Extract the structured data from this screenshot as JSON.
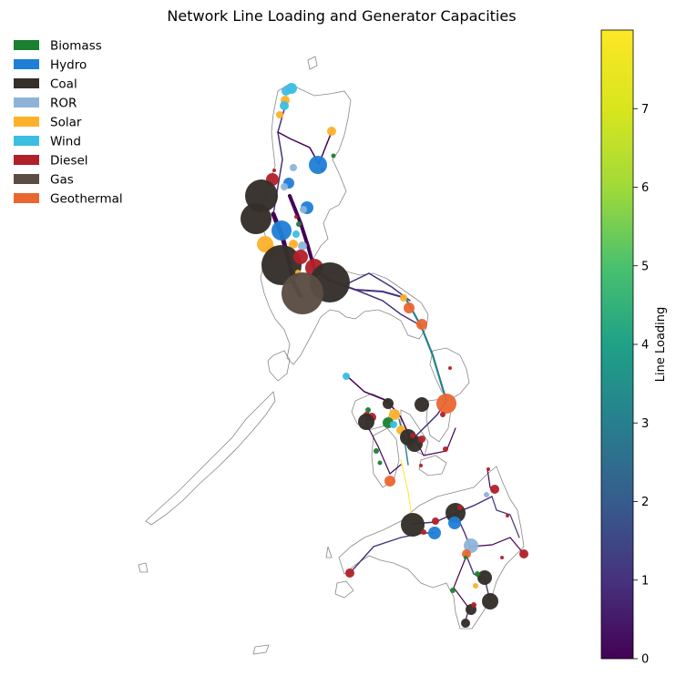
{
  "chart_data": {
    "type": "map",
    "title": "Network Line Loading and Generator Capacities",
    "legend": {
      "placement": "top-left",
      "entries": [
        {
          "name": "Biomass",
          "color": "#1a7f2e"
        },
        {
          "name": "Hydro",
          "color": "#1f7ed6"
        },
        {
          "name": "Coal",
          "color": "#352f2a"
        },
        {
          "name": "ROR",
          "color": "#8db4d8"
        },
        {
          "name": "Solar",
          "color": "#fdb12a"
        },
        {
          "name": "Wind",
          "color": "#3bbde4"
        },
        {
          "name": "Diesel",
          "color": "#b22028"
        },
        {
          "name": "Gas",
          "color": "#5a4d44"
        },
        {
          "name": "Geothermal",
          "color": "#ea6630"
        }
      ]
    },
    "colorbar": {
      "label": "Line Loading",
      "colormap": "viridis",
      "range": [
        0,
        8
      ],
      "ticks": [
        "0",
        "1",
        "2",
        "3",
        "4",
        "5",
        "6",
        "7"
      ]
    }
  }
}
